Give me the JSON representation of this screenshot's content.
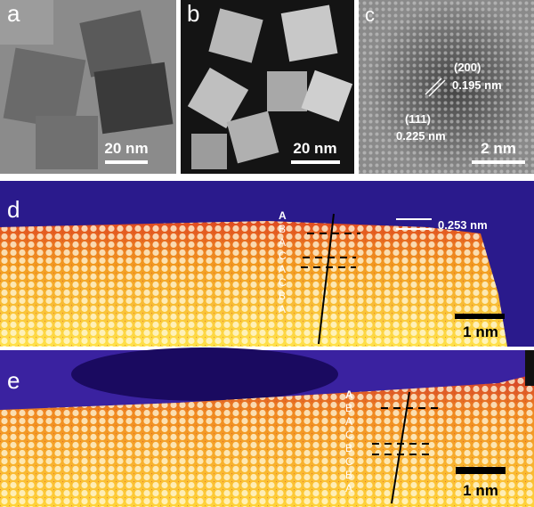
{
  "panels": [
    {
      "label": "a",
      "scale_bar": "20 nm"
    },
    {
      "label": "b",
      "scale_bar": "20 nm"
    },
    {
      "label": "c",
      "scale_bar": "2 nm",
      "annotations": [
        "(200)",
        "0.195 nm",
        "(111)",
        "0.225 nm"
      ]
    },
    {
      "label": "d",
      "scale_bar": "1 nm",
      "spacing": "0.253 nm",
      "stacking": [
        "A",
        "B",
        "A",
        "C",
        "A",
        "C",
        "B",
        "A"
      ]
    },
    {
      "label": "e",
      "scale_bar": "1 nm",
      "stacking": [
        "A",
        "B",
        "A",
        "C",
        "B",
        "C",
        "B",
        "A"
      ]
    }
  ]
}
